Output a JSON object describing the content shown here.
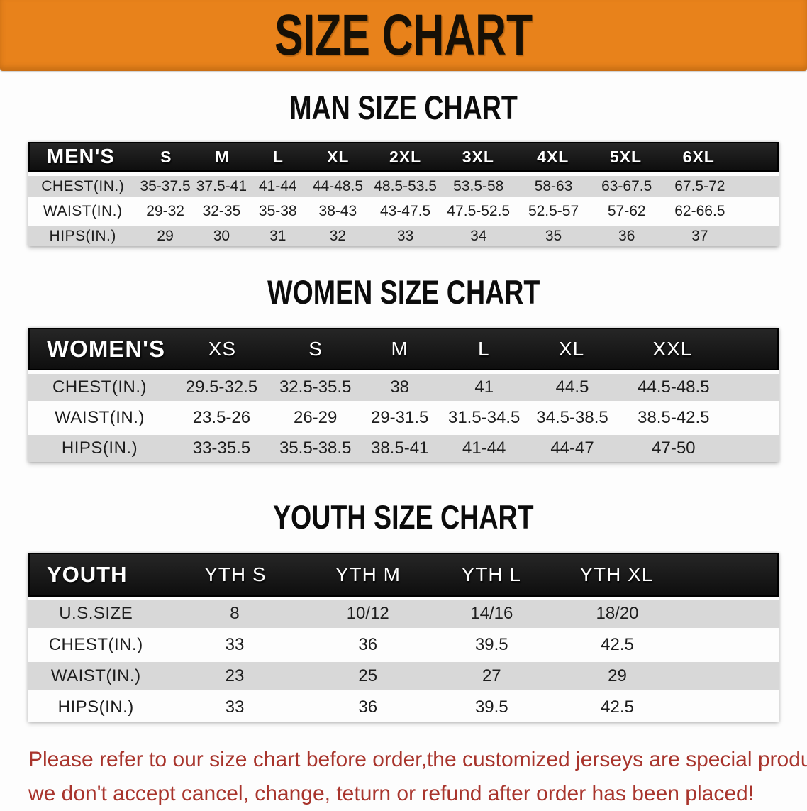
{
  "banner": {
    "title": "SIZE CHART",
    "bg_color": "#E8821B"
  },
  "colors": {
    "header_bar": "#141414",
    "row_gray": "#D8D8D8",
    "row_white": "#FDFDFD"
  },
  "sections": [
    {
      "heading": "MAN SIZE CHART",
      "label": "MEN'S",
      "sizes": [
        "S",
        "M",
        "L",
        "XL",
        "2XL",
        "3XL",
        "4XL",
        "5XL",
        "6XL"
      ],
      "rows": [
        {
          "label": "CHEST(IN.)",
          "values": [
            "35-37.5",
            "37.5-41",
            "41-44",
            "44-48.5",
            "48.5-53.5",
            "53.5-58",
            "58-63",
            "63-67.5",
            "67.5-72"
          ]
        },
        {
          "label": "WAIST(IN.)",
          "values": [
            "29-32",
            "32-35",
            "35-38",
            "38-43",
            "43-47.5",
            "47.5-52.5",
            "52.5-57",
            "57-62",
            "62-66.5"
          ]
        },
        {
          "label": "HIPS(IN.)",
          "values": [
            "29",
            "30",
            "31",
            "32",
            "33",
            "34",
            "35",
            "36",
            "37"
          ]
        }
      ]
    },
    {
      "heading": "WOMEN SIZE CHART",
      "label": "WOMEN'S",
      "sizes": [
        "XS",
        "S",
        "M",
        "L",
        "XL",
        "XXL"
      ],
      "rows": [
        {
          "label": "CHEST(IN.)",
          "values": [
            "29.5-32.5",
            "32.5-35.5",
            "38",
            "41",
            "44.5",
            "44.5-48.5"
          ]
        },
        {
          "label": "WAIST(IN.)",
          "values": [
            "23.5-26",
            "26-29",
            "29-31.5",
            "31.5-34.5",
            "34.5-38.5",
            "38.5-42.5"
          ]
        },
        {
          "label": "HIPS(IN.)",
          "values": [
            "33-35.5",
            "35.5-38.5",
            "38.5-41",
            "41-44",
            "44-47",
            "47-50"
          ]
        }
      ]
    },
    {
      "heading": "YOUTH SIZE CHART",
      "label": "YOUTH",
      "sizes": [
        "YTH S",
        "YTH M",
        "YTH L",
        "YTH XL"
      ],
      "rows": [
        {
          "label": "U.S.SIZE",
          "values": [
            "8",
            "10/12",
            "14/16",
            "18/20"
          ]
        },
        {
          "label": "CHEST(IN.)",
          "values": [
            "33",
            "36",
            "39.5",
            "42.5"
          ]
        },
        {
          "label": "WAIST(IN.)",
          "values": [
            "23",
            "25",
            "27",
            "29"
          ]
        },
        {
          "label": "HIPS(IN.)",
          "values": [
            "33",
            "36",
            "39.5",
            "42.5"
          ]
        }
      ]
    }
  ],
  "footer": {
    "line1": "Please refer to our size chart before order,the customized jerseys are special products,",
    "line2": "we don't accept cancel, change, teturn or refund after order has been placed!",
    "text_color": "#A8342C"
  }
}
